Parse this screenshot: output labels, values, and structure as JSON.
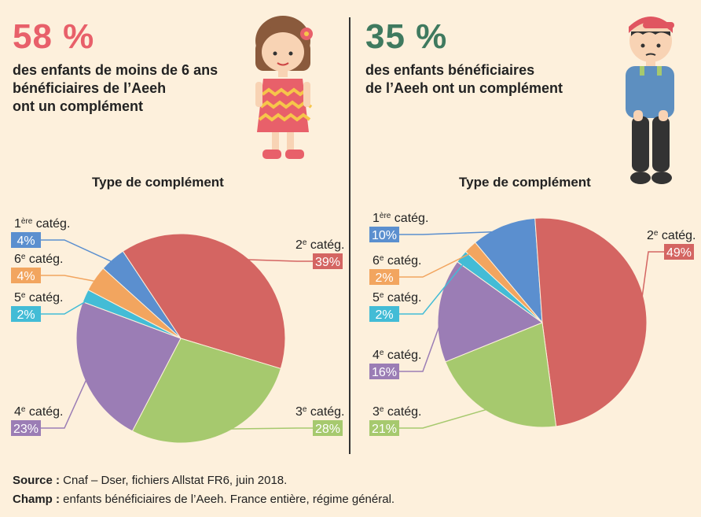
{
  "colors": {
    "background": "#fdf0dc",
    "cat1": "#5b8fcf",
    "cat2": "#d46562",
    "cat3": "#a6c96e",
    "cat4": "#9b7db5",
    "cat5": "#43bcd6",
    "cat6": "#f2a55f"
  },
  "left": {
    "stat": "58 %",
    "desc": [
      "des enfants de moins de 6 ans",
      "bénéficiaires de l’Aeeh",
      "ont un complément"
    ]
  },
  "right": {
    "stat": "35 %",
    "desc": [
      "des enfants bénéficiaires",
      "de l’Aeeh ont un complément"
    ]
  },
  "chart_data": [
    {
      "type": "pie",
      "title": "Type de complément",
      "segments": [
        {
          "base": "1",
          "sup": "ère",
          "suffix": " catég.",
          "value": 4,
          "pct": "4%",
          "color": "#5b8fcf"
        },
        {
          "base": "2",
          "sup": "e",
          "suffix": " catég.",
          "value": 39,
          "pct": "39%",
          "color": "#d46562"
        },
        {
          "base": "3",
          "sup": "e",
          "suffix": " catég.",
          "value": 28,
          "pct": "28%",
          "color": "#a6c96e"
        },
        {
          "base": "4",
          "sup": "e",
          "suffix": " catég.",
          "value": 23,
          "pct": "23%",
          "color": "#9b7db5"
        },
        {
          "base": "5",
          "sup": "e",
          "suffix": " catég.",
          "value": 2,
          "pct": "2%",
          "color": "#43bcd6"
        },
        {
          "base": "6",
          "sup": "e",
          "suffix": " catég.",
          "value": 4,
          "pct": "4%",
          "color": "#f2a55f"
        }
      ]
    },
    {
      "type": "pie",
      "title": "Type de complément",
      "segments": [
        {
          "base": "1",
          "sup": "ère",
          "suffix": " catég.",
          "value": 10,
          "pct": "10%",
          "color": "#5b8fcf"
        },
        {
          "base": "2",
          "sup": "e",
          "suffix": " catég.",
          "value": 49,
          "pct": "49%",
          "color": "#d46562"
        },
        {
          "base": "3",
          "sup": "e",
          "suffix": " catég.",
          "value": 21,
          "pct": "21%",
          "color": "#a6c96e"
        },
        {
          "base": "4",
          "sup": "e",
          "suffix": " catég.",
          "value": 16,
          "pct": "16%",
          "color": "#9b7db5"
        },
        {
          "base": "5",
          "sup": "e",
          "suffix": " catég.",
          "value": 2,
          "pct": "2%",
          "color": "#43bcd6"
        },
        {
          "base": "6",
          "sup": "e",
          "suffix": " catég.",
          "value": 2,
          "pct": "2%",
          "color": "#f2a55f"
        }
      ]
    }
  ],
  "footer": {
    "source_label": "Source :",
    "source_text": " Cnaf – Dser, fichiers Allstat FR6, juin 2018.",
    "champ_label": "Champ :",
    "champ_text": " enfants bénéficiaires de l’Aeeh. France entière, régime général."
  }
}
